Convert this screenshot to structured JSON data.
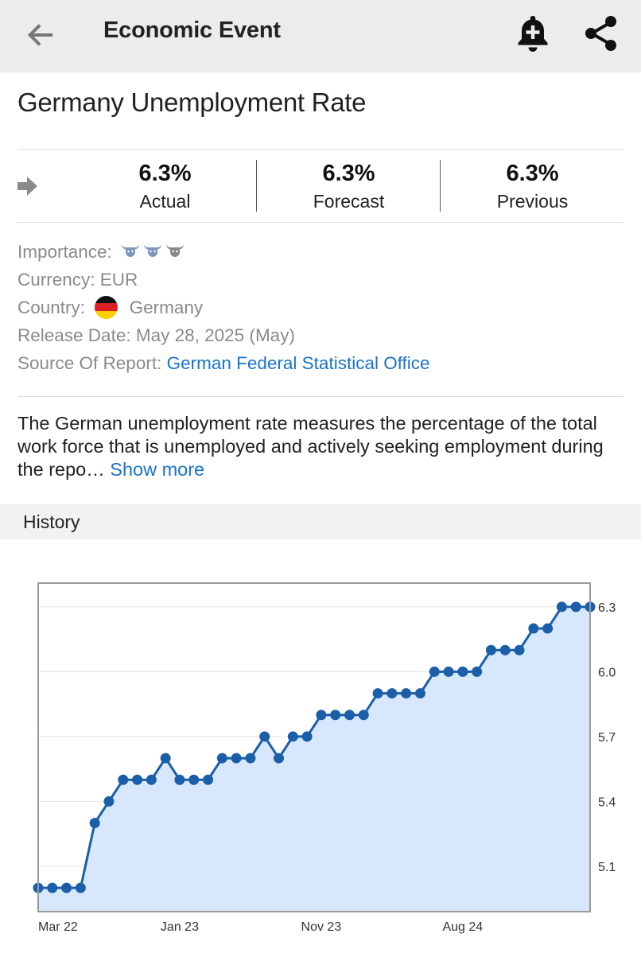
{
  "header": {
    "title": "Economic Event",
    "icons": [
      "back-arrow-icon",
      "bell-plus-icon",
      "share-icon"
    ]
  },
  "event": {
    "title": "Germany Unemployment Rate"
  },
  "stats": [
    {
      "value": "6.3%",
      "label": "Actual"
    },
    {
      "value": "6.3%",
      "label": "Forecast"
    },
    {
      "value": "6.3%",
      "label": "Previous"
    }
  ],
  "meta": {
    "importance_label": "Importance:",
    "importance_level": 2,
    "importance_max": 3,
    "currency_label": "Currency:",
    "currency_value": "EUR",
    "country_label": "Country:",
    "country_value": "Germany",
    "release_label": "Release Date:",
    "release_value": "May 28, 2025 (May)",
    "source_label": "Source Of Report:",
    "source_value": "German Federal Statistical Office"
  },
  "description": {
    "text": "The German unemployment rate measures the percentage of the total work force that is unemployed and actively seeking employment during the repo…",
    "show_more": "Show more"
  },
  "history": {
    "label": "History"
  },
  "colors": {
    "accent": "#1a73c8",
    "line": "#1a5fa8",
    "fill": "#d8e8fc",
    "topbar": "#ececec"
  },
  "chart_data": {
    "type": "area",
    "title": "",
    "xlabel": "",
    "ylabel": "",
    "x_ticks": [
      {
        "index": 0,
        "label": "Mar 22"
      },
      {
        "index": 10,
        "label": "Jan 23"
      },
      {
        "index": 20,
        "label": "Nov 23"
      },
      {
        "index": 30,
        "label": "Aug 24"
      }
    ],
    "y_ticks": [
      5.1,
      5.4,
      5.7,
      6.0,
      6.3
    ],
    "ylim": [
      4.89,
      6.41
    ],
    "grid": true,
    "y_axis_side": "right",
    "series": [
      {
        "values": [
          5.0,
          5.0,
          5.0,
          5.0,
          5.3,
          5.4,
          5.5,
          5.5,
          5.5,
          5.6,
          5.5,
          5.5,
          5.5,
          5.6,
          5.6,
          5.6,
          5.7,
          5.6,
          5.7,
          5.7,
          5.8,
          5.8,
          5.8,
          5.8,
          5.9,
          5.9,
          5.9,
          5.9,
          6.0,
          6.0,
          6.0,
          6.0,
          6.1,
          6.1,
          6.1,
          6.2,
          6.2,
          6.3,
          6.3,
          6.3
        ]
      }
    ]
  }
}
